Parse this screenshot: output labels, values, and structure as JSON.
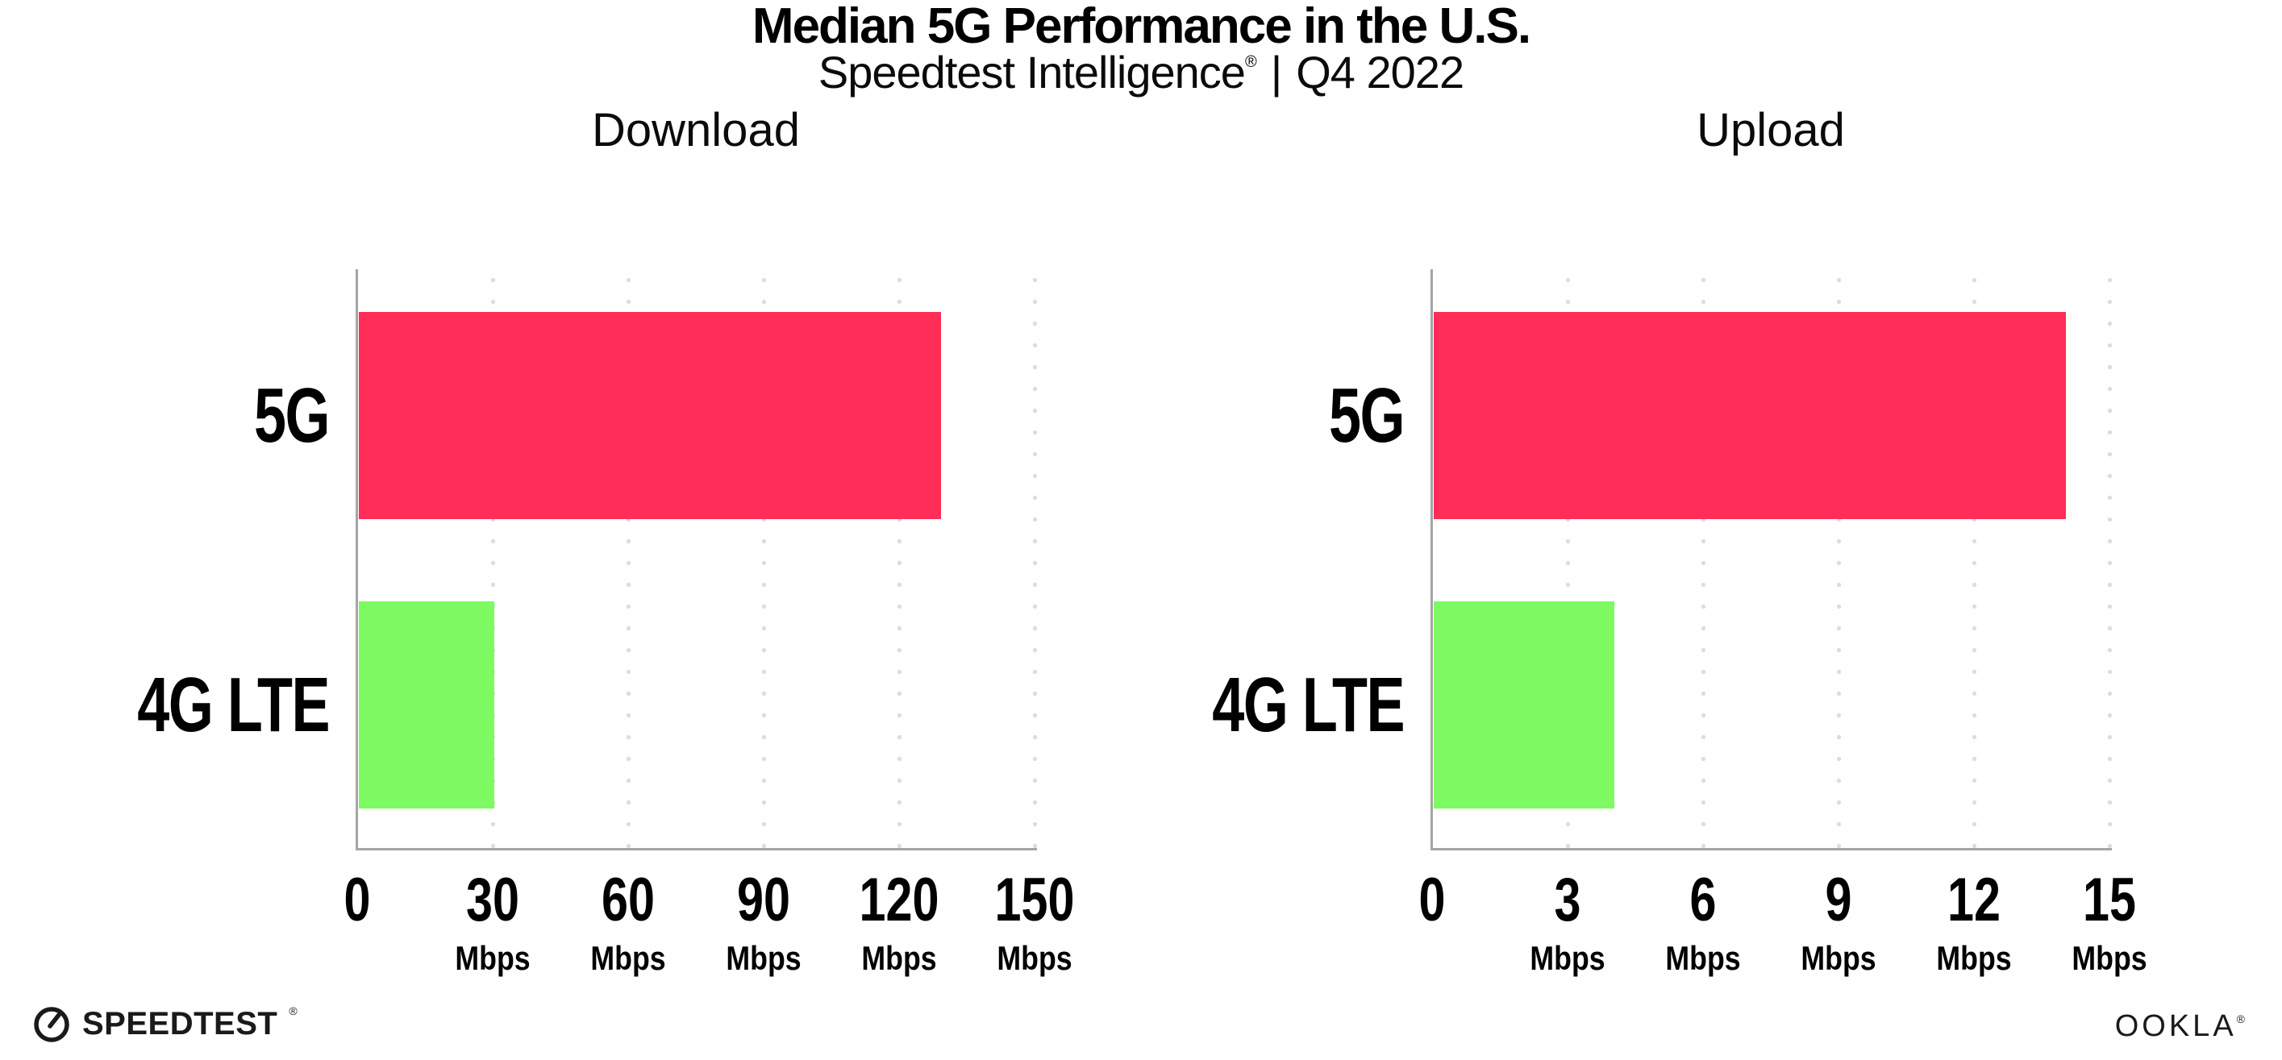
{
  "header": {
    "title": "Median 5G Performance in the U.S.",
    "subtitle": {
      "brand": "Speedtest Intelligence",
      "registered_mark": "®",
      "separator": "|",
      "period": "Q4 2022"
    }
  },
  "chart_data": [
    {
      "type": "bar",
      "orientation": "horizontal",
      "title": "Download",
      "categories": [
        "5G",
        "4G LTE"
      ],
      "values": [
        129,
        30
      ],
      "unit": "Mbps",
      "xlim": [
        0,
        150
      ],
      "xticks": [
        0,
        30,
        60,
        90,
        120,
        150
      ],
      "tick_unit": "Mbps",
      "bar_colors": [
        "#FF2D58",
        "#7EFA62"
      ],
      "grid": "vertical-dotted",
      "legend": "none"
    },
    {
      "type": "bar",
      "orientation": "horizontal",
      "title": "Upload",
      "categories": [
        "5G",
        "4G LTE"
      ],
      "values": [
        14,
        4
      ],
      "unit": "Mbps",
      "xlim": [
        0,
        15
      ],
      "xticks": [
        0,
        3,
        6,
        9,
        12,
        15
      ],
      "tick_unit": "Mbps",
      "bar_colors": [
        "#FF2D58",
        "#7EFA62"
      ],
      "grid": "vertical-dotted",
      "legend": "none"
    }
  ],
  "footer": {
    "speedtest_logo": {
      "text": "SPEEDTEST",
      "mark": "®"
    },
    "ookla_logo": {
      "text": "OOKLA",
      "mark": "®"
    }
  },
  "colors": {
    "bar_5g": "#FF2D58",
    "bar_4g_lte": "#7EFA62",
    "grid_dot": "#DBDBE9",
    "axis_line": "#A5A5A5",
    "text": "#000000"
  }
}
